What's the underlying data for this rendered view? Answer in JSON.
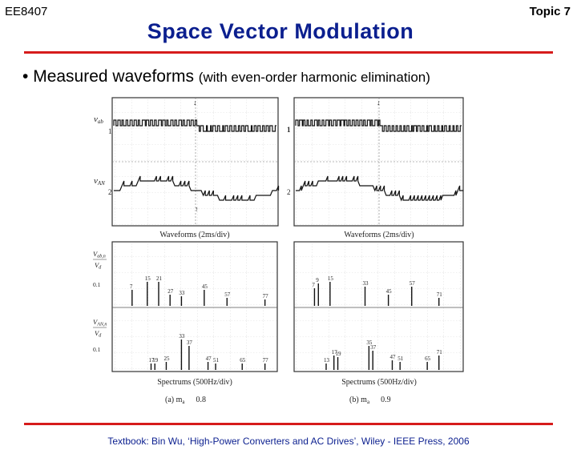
{
  "header": {
    "course_code": "EE8407",
    "topic_label": "Topic 7",
    "title": "Space Vector Modulation"
  },
  "bullet": {
    "marker": "•",
    "main_text": "Measured waveforms",
    "sub_text": "(with even-order harmonic elimination)"
  },
  "figure": {
    "waveform_caption_left": "Waveforms   (2ms/div)",
    "waveform_caption_right": "Waveforms   (2ms/div)",
    "spectrum_caption_left": "Spectrums   (500Hz/div)",
    "spectrum_caption_right": "Spectrums   (500Hz/div)",
    "panel_a_label": "(a)  m",
    "panel_a_sub": "a",
    "panel_a_value": "0.8",
    "panel_b_label": "(b)  m",
    "panel_b_sub": "a",
    "panel_b_value": "0.9",
    "trace_label_1": "v",
    "trace_label_1_sub": "ab",
    "trace_label_2": "v",
    "trace_label_2_sub": "AN",
    "spec_label_1": "V",
    "spec_label_1_sub": "ab,n",
    "spec_label_2": "V",
    "spec_label_2_sub": "AN,n",
    "spec_den": "V",
    "spec_den_sub": "d",
    "tick_01": "0.1",
    "marker_1": "1",
    "marker_2": "2",
    "harmonics_a_top": [
      "7",
      "15",
      "21",
      "27",
      "33",
      "45",
      "57",
      "77"
    ],
    "harmonics_a_bottom": [
      "17",
      "19",
      "25",
      "33",
      "37",
      "47",
      "51",
      "65",
      "77"
    ],
    "harmonics_b_top": [
      "7",
      "15",
      "9",
      "33",
      "45",
      "57",
      "71"
    ],
    "harmonics_b_bottom": [
      "13",
      "17",
      "19",
      "35",
      "37",
      "47",
      "51",
      "65",
      "71"
    ]
  },
  "footer": {
    "citation": "Textbook: Bin Wu, ‘High-Power Converters and AC Drives’, Wiley - IEEE Press, 2006"
  }
}
